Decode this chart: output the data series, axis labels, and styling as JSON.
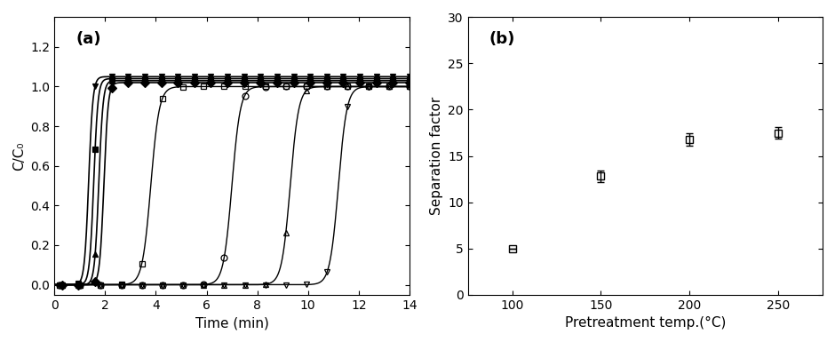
{
  "panel_a": {
    "title": "(a)",
    "xlabel": "Time (min)",
    "ylabel": "C/C₀",
    "xlim": [
      0,
      14
    ],
    "ylim": [
      -0.05,
      1.35
    ],
    "yticks": [
      0.0,
      0.2,
      0.4,
      0.6,
      0.8,
      1.0,
      1.2
    ],
    "ethane_breakthrough": [
      1.35,
      1.55,
      1.75,
      1.95
    ],
    "ethylene_breakthrough": [
      3.8,
      7.0,
      9.3,
      11.2
    ],
    "ethane_steepness": 12,
    "ethylene_steepness": 6,
    "ethane_plateau": [
      1.05,
      1.04,
      1.03,
      1.02
    ],
    "ethane_markers_filled": [
      "v",
      "s",
      "^",
      "D"
    ],
    "ethylene_markers_open": [
      "s",
      "o",
      "^",
      "v"
    ],
    "n_markers_ethane": 22,
    "n_markers_ethylene": 18
  },
  "panel_b": {
    "title": "(b)",
    "xlabel": "Pretreatment temp.(°C)",
    "ylabel": "Separation factor",
    "xlim": [
      75,
      275
    ],
    "ylim": [
      0,
      30
    ],
    "yticks": [
      0,
      5,
      10,
      15,
      20,
      25,
      30
    ],
    "xticks": [
      100,
      150,
      200,
      250
    ],
    "temps": [
      100,
      150,
      200,
      250
    ],
    "sep_factors": [
      5.0,
      12.8,
      16.8,
      17.5
    ],
    "yerr": [
      0.0,
      0.6,
      0.65,
      0.65
    ]
  }
}
